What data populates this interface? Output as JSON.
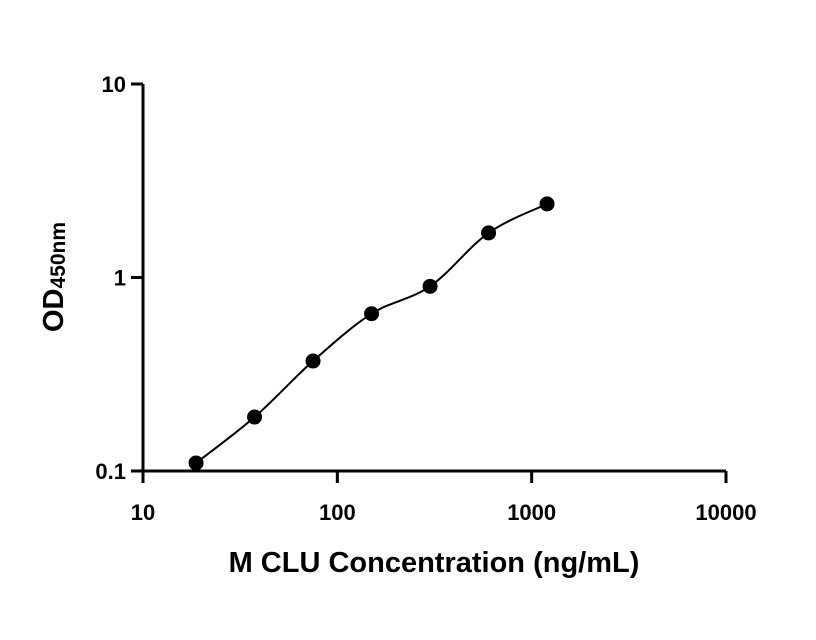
{
  "chart_data": {
    "type": "scatter",
    "title": "",
    "xlabel": "M CLU Concentration (ng/mL)",
    "ylabel": {
      "main": "OD",
      "subscript": "450nm"
    },
    "xscale": "log",
    "yscale": "log",
    "xlim": [
      10,
      10000
    ],
    "ylim": [
      0.1,
      10
    ],
    "xticks": [
      10,
      100,
      1000,
      10000
    ],
    "xtick_labels": [
      "10",
      "100",
      "1000",
      "10000"
    ],
    "yticks": [
      0.1,
      1,
      10
    ],
    "ytick_labels": [
      "0.1",
      "1",
      "10"
    ],
    "grid": false,
    "legend": false,
    "series": [
      {
        "x": [
          18.75,
          37.5,
          75,
          150,
          300,
          600,
          1200
        ],
        "y": [
          0.11,
          0.19,
          0.37,
          0.65,
          0.9,
          1.7,
          2.4
        ],
        "marker": "circle",
        "color": "#000000",
        "fit_curve": true
      }
    ]
  }
}
